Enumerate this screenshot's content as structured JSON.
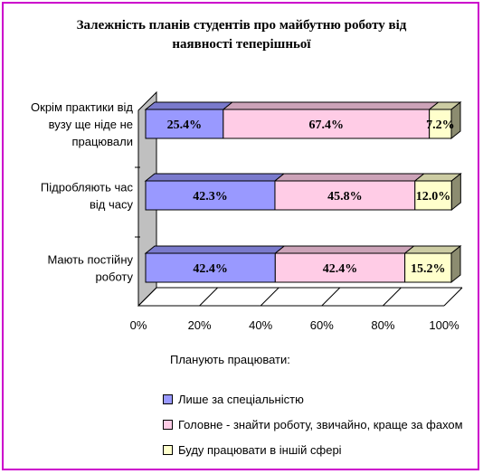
{
  "chart_data": {
    "type": "bar",
    "orientation": "horizontal",
    "stacked": "100%",
    "title": "Залежність планів студентів про майбутню роботу від наявності теперішньої",
    "title_lines": [
      "Залежність планів студентів про майбутню роботу від",
      "наявності теперішньої"
    ],
    "categories": [
      [
        "Окрім практики від",
        "вузу ще ніде не",
        "працювали"
      ],
      [
        "Підробляють час",
        "від часу"
      ],
      [
        "Мають постійну",
        "роботу"
      ]
    ],
    "series": [
      {
        "name": "Лише за спеціальністю",
        "color": "#9999ff",
        "values": [
          25.4,
          42.3,
          42.4
        ],
        "labels": [
          "25.4%",
          "42.3%",
          "42.4%"
        ]
      },
      {
        "name": "Головне - знайти роботу, звичайно, краще за фахом",
        "color": "#ffcce6",
        "values": [
          67.4,
          45.8,
          42.4
        ],
        "labels": [
          "67.4%",
          "45.8%",
          "42.4%"
        ]
      },
      {
        "name": "Буду працювати в іншій сфері",
        "color": "#ffffcc",
        "values": [
          7.2,
          12.0,
          15.2
        ],
        "labels": [
          "7.2%",
          "12.0%",
          "15.2%"
        ]
      }
    ],
    "xlim": [
      0,
      100
    ],
    "xticks": [
      "0%",
      "20%",
      "40%",
      "60%",
      "80%",
      "100%"
    ],
    "legend_title": "Планують працювати:",
    "legend_position": "bottom",
    "grid": true,
    "style": "3d",
    "colors": {
      "frame": "#cc00cc",
      "wall": "#c0c0c0"
    }
  }
}
